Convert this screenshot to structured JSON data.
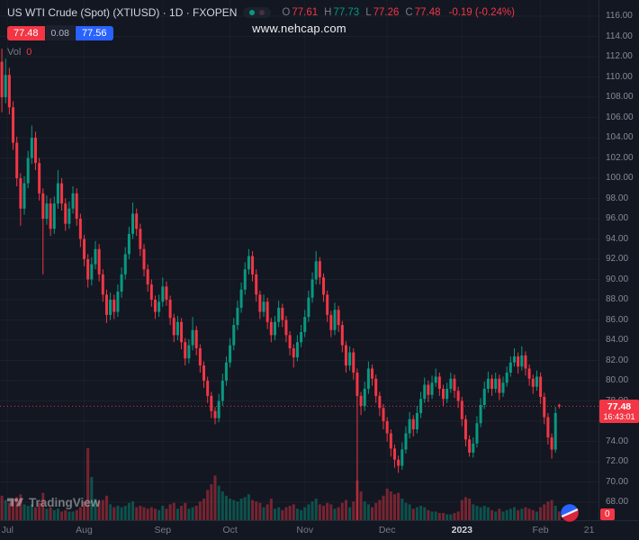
{
  "colors": {
    "up": "#089981",
    "down": "#f23645",
    "blue": "#2962ff",
    "axis_text": "#868b93",
    "title_text": "#d1d4dc",
    "bg": "#131722"
  },
  "watermark": "www.nehcap.com",
  "header": {
    "symbol_title": "US WTI Crude (Spot) (XTIUSD) · 1D · FXOPEN",
    "ohlc": {
      "o_label": "O",
      "o": "77.61",
      "h_label": "H",
      "h": "77.73",
      "l_label": "L",
      "l": "77.26",
      "c_label": "C",
      "c": "77.48",
      "change": "-0.19 (-0.24%)"
    },
    "bid": "77.48",
    "spread": "0.08",
    "ask": "77.56",
    "vol_label": "Vol",
    "vol_value": "0"
  },
  "logo": {
    "text": "TradingView"
  },
  "price_axis": {
    "ticks": [
      "116.00",
      "114.00",
      "112.00",
      "110.00",
      "108.00",
      "106.00",
      "104.00",
      "102.00",
      "100.00",
      "98.00",
      "96.00",
      "94.00",
      "92.00",
      "90.00",
      "88.00",
      "86.00",
      "84.00",
      "82.00",
      "80.00",
      "78.00",
      "76.00",
      "74.00",
      "72.00",
      "70.00",
      "68.00"
    ],
    "last_price_label": "77.48",
    "countdown": "16:43:01",
    "vol_axis_label": "0"
  },
  "time_axis": {
    "ticks": [
      {
        "label": "Jul",
        "index": 1.5
      },
      {
        "label": "Aug",
        "index": 22
      },
      {
        "label": "Sep",
        "index": 43
      },
      {
        "label": "Oct",
        "index": 61
      },
      {
        "label": "Nov",
        "index": 81
      },
      {
        "label": "Dec",
        "index": 103
      },
      {
        "label": "2023",
        "index": 123,
        "highlight": true
      },
      {
        "label": "Feb",
        "index": 144
      },
      {
        "label": "21",
        "index": 157
      }
    ]
  },
  "chart_data": {
    "type": "candlestick",
    "title": "US WTI Crude (Spot) (XTIUSD) · 1D · FXOPEN",
    "symbol": "XTIUSD",
    "interval": "1D",
    "provider": "FXOPEN",
    "ylim": [
      68,
      116
    ],
    "x_labels": [
      "Jul",
      "Aug",
      "Sep",
      "Oct",
      "Nov",
      "Dec",
      "2023",
      "Feb",
      "21"
    ],
    "last_price": 77.48,
    "last_ohlc": {
      "open": 77.61,
      "high": 77.73,
      "low": 77.26,
      "close": 77.48,
      "change": -0.19,
      "change_pct": -0.24
    },
    "volume_pane": {
      "indicator": "Vol",
      "last_value": 0
    },
    "candles": [
      [
        111.5,
        112.8,
        106.5,
        108.0,
        34
      ],
      [
        108.0,
        111.8,
        107.4,
        110.2,
        28
      ],
      [
        110.2,
        110.9,
        106.3,
        107.0,
        24
      ],
      [
        107.0,
        107.6,
        102.8,
        103.5,
        30
      ],
      [
        103.5,
        104.1,
        99.2,
        100.0,
        32
      ],
      [
        100.0,
        100.5,
        95.3,
        97.0,
        36
      ],
      [
        97.0,
        100.2,
        96.4,
        99.5,
        22
      ],
      [
        99.5,
        102.7,
        99.0,
        102.0,
        20
      ],
      [
        102.0,
        105.2,
        101.4,
        104.0,
        22
      ],
      [
        104.0,
        104.6,
        100.8,
        101.5,
        18
      ],
      [
        101.5,
        102.0,
        97.8,
        98.5,
        24
      ],
      [
        98.5,
        99.0,
        90.5,
        96.0,
        38
      ],
      [
        96.0,
        98.3,
        95.4,
        97.5,
        16
      ],
      [
        97.5,
        98.0,
        94.3,
        95.0,
        18
      ],
      [
        95.0,
        98.2,
        94.5,
        97.5,
        14
      ],
      [
        97.5,
        100.8,
        97.0,
        99.5,
        16
      ],
      [
        99.5,
        100.0,
        96.8,
        97.5,
        12
      ],
      [
        97.5,
        98.0,
        94.8,
        95.5,
        14
      ],
      [
        95.5,
        97.7,
        95.0,
        97.0,
        12
      ],
      [
        97.0,
        99.2,
        96.5,
        98.5,
        12
      ],
      [
        98.5,
        99.0,
        95.3,
        96.0,
        14
      ],
      [
        96.0,
        96.5,
        93.2,
        94.0,
        18
      ],
      [
        94.0,
        94.4,
        91.3,
        92.0,
        26
      ],
      [
        92.0,
        92.5,
        89.2,
        90.0,
        100
      ],
      [
        90.0,
        92.2,
        89.4,
        91.5,
        60
      ],
      [
        91.5,
        93.8,
        91.0,
        93.0,
        30
      ],
      [
        93.0,
        93.5,
        89.8,
        90.5,
        26
      ],
      [
        90.5,
        91.0,
        87.8,
        88.5,
        28
      ],
      [
        88.5,
        89.0,
        85.7,
        86.5,
        34
      ],
      [
        86.5,
        88.7,
        86.0,
        88.0,
        22
      ],
      [
        88.0,
        88.5,
        86.1,
        86.8,
        18
      ],
      [
        86.8,
        89.5,
        86.3,
        88.8,
        20
      ],
      [
        88.8,
        91.2,
        88.2,
        90.5,
        18
      ],
      [
        90.5,
        93.2,
        90.0,
        92.5,
        20
      ],
      [
        92.5,
        95.2,
        92.0,
        94.5,
        24
      ],
      [
        94.5,
        97.6,
        94.0,
        96.5,
        26
      ],
      [
        96.5,
        97.0,
        94.3,
        95.0,
        18
      ],
      [
        95.0,
        95.5,
        92.3,
        93.0,
        20
      ],
      [
        93.0,
        93.5,
        90.3,
        91.0,
        18
      ],
      [
        91.0,
        91.5,
        88.8,
        89.5,
        16
      ],
      [
        89.5,
        90.0,
        87.3,
        88.0,
        18
      ],
      [
        88.0,
        88.4,
        86.1,
        86.8,
        16
      ],
      [
        86.8,
        88.5,
        86.3,
        87.8,
        14
      ],
      [
        87.8,
        90.2,
        87.3,
        89.3,
        20
      ],
      [
        89.3,
        89.8,
        87.4,
        88.0,
        16
      ],
      [
        88.0,
        88.4,
        85.5,
        86.2,
        22
      ],
      [
        86.2,
        86.6,
        83.8,
        84.5,
        24
      ],
      [
        84.5,
        86.4,
        84.0,
        85.8,
        16
      ],
      [
        85.8,
        86.2,
        83.1,
        83.8,
        20
      ],
      [
        83.8,
        84.2,
        81.5,
        82.2,
        24
      ],
      [
        82.2,
        84.1,
        81.7,
        83.5,
        16
      ],
      [
        83.5,
        86.3,
        83.0,
        85.0,
        18
      ],
      [
        85.0,
        85.4,
        82.5,
        83.2,
        20
      ],
      [
        83.2,
        83.6,
        80.8,
        81.5,
        26
      ],
      [
        81.5,
        81.9,
        79.3,
        80.0,
        30
      ],
      [
        80.0,
        80.4,
        77.8,
        78.5,
        42
      ],
      [
        78.5,
        78.9,
        76.3,
        77.0,
        50
      ],
      [
        77.0,
        77.4,
        75.7,
        76.3,
        62
      ],
      [
        76.3,
        78.7,
        75.9,
        78.0,
        48
      ],
      [
        78.0,
        80.7,
        77.5,
        80.0,
        40
      ],
      [
        80.0,
        82.4,
        79.5,
        81.8,
        34
      ],
      [
        81.8,
        84.2,
        81.3,
        83.5,
        30
      ],
      [
        83.5,
        86.2,
        83.0,
        85.5,
        28
      ],
      [
        85.5,
        87.9,
        85.0,
        87.2,
        26
      ],
      [
        87.2,
        89.7,
        86.7,
        89.0,
        30
      ],
      [
        89.0,
        91.7,
        88.5,
        91.0,
        32
      ],
      [
        91.0,
        93.0,
        90.5,
        92.3,
        36
      ],
      [
        92.3,
        92.8,
        89.8,
        90.5,
        28
      ],
      [
        90.5,
        91.0,
        87.8,
        88.5,
        26
      ],
      [
        88.5,
        88.9,
        86.1,
        86.8,
        24
      ],
      [
        86.8,
        88.5,
        86.3,
        87.8,
        18
      ],
      [
        87.8,
        88.2,
        85.1,
        85.8,
        22
      ],
      [
        85.8,
        86.2,
        83.8,
        84.5,
        30
      ],
      [
        84.5,
        86.4,
        84.0,
        85.8,
        16
      ],
      [
        85.8,
        87.9,
        85.3,
        87.2,
        18
      ],
      [
        87.2,
        87.6,
        85.3,
        86.0,
        14
      ],
      [
        86.0,
        86.4,
        83.8,
        84.5,
        18
      ],
      [
        84.5,
        84.9,
        82.5,
        83.2,
        20
      ],
      [
        83.2,
        83.6,
        81.3,
        82.3,
        22
      ],
      [
        82.3,
        84.5,
        81.9,
        83.8,
        16
      ],
      [
        83.8,
        85.5,
        83.3,
        84.8,
        14
      ],
      [
        84.8,
        87.0,
        84.3,
        86.3,
        18
      ],
      [
        86.3,
        88.9,
        85.8,
        88.2,
        22
      ],
      [
        88.2,
        90.7,
        87.7,
        90.0,
        26
      ],
      [
        90.0,
        92.8,
        89.5,
        91.8,
        30
      ],
      [
        91.8,
        92.2,
        89.5,
        90.2,
        22
      ],
      [
        90.2,
        90.6,
        87.8,
        88.5,
        20
      ],
      [
        88.5,
        88.9,
        85.8,
        86.5,
        24
      ],
      [
        86.5,
        86.9,
        84.3,
        85.0,
        22
      ],
      [
        85.0,
        87.7,
        84.5,
        87.0,
        16
      ],
      [
        87.0,
        87.4,
        84.8,
        85.5,
        18
      ],
      [
        85.5,
        85.9,
        82.8,
        83.5,
        24
      ],
      [
        83.5,
        83.9,
        80.8,
        81.5,
        28
      ],
      [
        81.5,
        83.4,
        81.0,
        82.8,
        18
      ],
      [
        82.8,
        83.2,
        80.1,
        80.8,
        26
      ],
      [
        80.8,
        81.2,
        65.8,
        78.5,
        55
      ],
      [
        78.5,
        78.9,
        76.6,
        77.5,
        40
      ],
      [
        77.5,
        79.9,
        77.0,
        79.2,
        26
      ],
      [
        79.2,
        81.9,
        78.7,
        81.2,
        22
      ],
      [
        81.2,
        81.6,
        79.5,
        80.2,
        18
      ],
      [
        80.2,
        80.6,
        77.8,
        78.5,
        24
      ],
      [
        78.5,
        78.9,
        76.5,
        77.3,
        28
      ],
      [
        77.3,
        77.7,
        75.2,
        76.0,
        34
      ],
      [
        76.0,
        76.4,
        74.0,
        74.8,
        44
      ],
      [
        74.8,
        75.2,
        72.5,
        73.3,
        40
      ],
      [
        73.3,
        73.7,
        71.4,
        72.2,
        36
      ],
      [
        72.2,
        72.6,
        70.9,
        71.6,
        38
      ],
      [
        71.6,
        73.9,
        71.2,
        73.2,
        30
      ],
      [
        73.2,
        75.5,
        72.8,
        74.8,
        24
      ],
      [
        74.8,
        76.9,
        74.3,
        76.2,
        22
      ],
      [
        76.2,
        76.6,
        74.5,
        75.2,
        16
      ],
      [
        75.2,
        77.5,
        74.8,
        76.8,
        18
      ],
      [
        76.8,
        78.9,
        76.3,
        78.2,
        20
      ],
      [
        78.2,
        80.3,
        77.8,
        79.6,
        18
      ],
      [
        79.6,
        80.0,
        77.9,
        78.6,
        14
      ],
      [
        78.6,
        80.5,
        78.2,
        79.8,
        12
      ],
      [
        79.8,
        81.2,
        79.4,
        80.4,
        12
      ],
      [
        80.4,
        80.8,
        78.5,
        79.2,
        10
      ],
      [
        79.2,
        79.6,
        77.5,
        78.2,
        10
      ],
      [
        78.2,
        79.8,
        77.8,
        79.2,
        8
      ],
      [
        79.2,
        80.8,
        78.8,
        80.2,
        8
      ],
      [
        80.2,
        80.6,
        78.3,
        79.0,
        10
      ],
      [
        79.0,
        79.4,
        77.3,
        78.0,
        12
      ],
      [
        78.0,
        78.4,
        75.5,
        76.2,
        28
      ],
      [
        76.2,
        76.6,
        73.5,
        74.2,
        32
      ],
      [
        74.2,
        74.6,
        72.5,
        72.9,
        30
      ],
      [
        72.9,
        74.4,
        72.4,
        73.8,
        22
      ],
      [
        73.8,
        76.5,
        73.4,
        75.8,
        20
      ],
      [
        75.8,
        78.3,
        75.4,
        77.6,
        18
      ],
      [
        77.6,
        79.9,
        77.2,
        79.2,
        20
      ],
      [
        79.2,
        80.9,
        78.8,
        80.2,
        18
      ],
      [
        80.2,
        80.6,
        78.5,
        79.2,
        14
      ],
      [
        79.2,
        80.8,
        78.8,
        80.2,
        12
      ],
      [
        80.2,
        80.6,
        78.1,
        78.8,
        16
      ],
      [
        78.8,
        80.4,
        78.4,
        79.8,
        12
      ],
      [
        79.8,
        81.4,
        79.4,
        80.8,
        14
      ],
      [
        80.8,
        82.4,
        80.4,
        81.8,
        16
      ],
      [
        81.8,
        83.2,
        81.4,
        82.4,
        18
      ],
      [
        82.4,
        82.8,
        80.7,
        81.4,
        14
      ],
      [
        81.4,
        83.4,
        81.0,
        82.5,
        16
      ],
      [
        82.5,
        82.9,
        80.5,
        81.2,
        18
      ],
      [
        81.2,
        81.6,
        79.5,
        80.2,
        16
      ],
      [
        80.2,
        80.6,
        78.7,
        79.4,
        14
      ],
      [
        79.4,
        81.0,
        79.0,
        80.4,
        12
      ],
      [
        80.4,
        80.8,
        77.7,
        78.4,
        18
      ],
      [
        78.4,
        78.8,
        75.7,
        76.4,
        22
      ],
      [
        76.4,
        76.8,
        73.7,
        74.4,
        26
      ],
      [
        74.4,
        74.8,
        72.3,
        73.2,
        28
      ],
      [
        73.2,
        77.4,
        72.9,
        76.8,
        20
      ],
      [
        77.61,
        77.73,
        77.26,
        77.48,
        12
      ]
    ]
  }
}
